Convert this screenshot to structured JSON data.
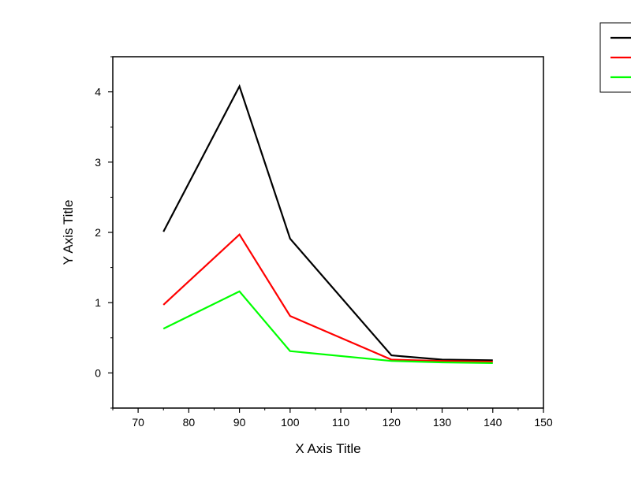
{
  "chart_data": {
    "type": "line",
    "title": "",
    "xlabel": "X Axis Title",
    "ylabel": "Y Axis Title",
    "xlim": [
      65,
      150
    ],
    "ylim": [
      -0.5,
      4.5
    ],
    "x_ticks": [
      70,
      80,
      90,
      100,
      110,
      120,
      130,
      140,
      150
    ],
    "y_ticks": [
      0,
      1,
      2,
      3,
      4
    ],
    "grid": false,
    "legend_position": "top-right",
    "x": [
      75,
      90,
      100,
      120,
      130,
      140
    ],
    "series": [
      {
        "color": "#000000",
        "values": [
          2.01,
          4.08,
          1.91,
          0.25,
          0.19,
          0.18
        ]
      },
      {
        "color": "#ff0000",
        "values": [
          0.97,
          1.97,
          0.81,
          0.19,
          0.17,
          0.16
        ]
      },
      {
        "color": "#00ff00",
        "values": [
          0.63,
          1.16,
          0.31,
          0.17,
          0.15,
          0.14
        ]
      }
    ]
  }
}
